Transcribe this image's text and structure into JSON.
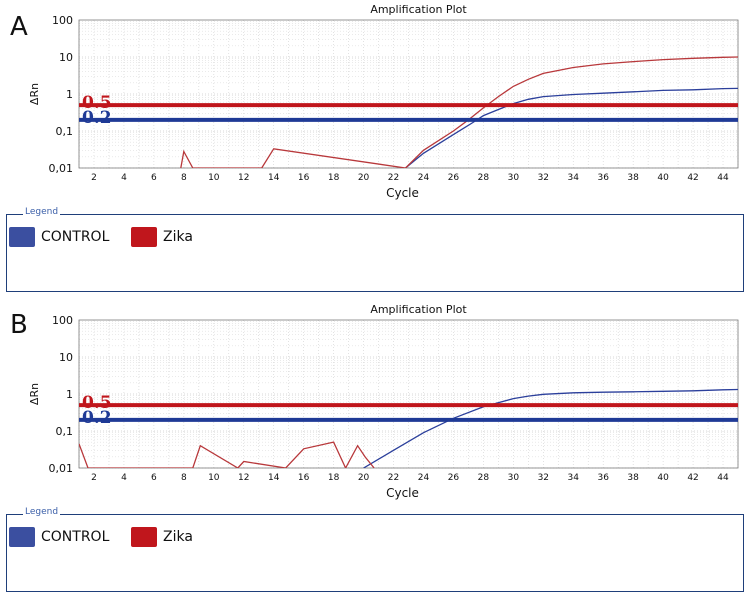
{
  "chart_data": [
    {
      "type": "line",
      "panel": "A",
      "title": "Amplification Plot",
      "xlabel": "Cycle",
      "ylabel": "ΔRn",
      "yscale": "log",
      "xlim": [
        1,
        45
      ],
      "ylim": [
        0.01,
        100
      ],
      "x_ticks": [
        "2",
        "4",
        "6",
        "8",
        "10",
        "12",
        "14",
        "16",
        "18",
        "20",
        "22",
        "24",
        "26",
        "28",
        "30",
        "32",
        "34",
        "36",
        "38",
        "40",
        "42",
        "44"
      ],
      "y_ticks": [
        "0,01",
        "0,1",
        "1",
        "10",
        "100"
      ],
      "grid": true,
      "thresholds": [
        {
          "label": "0.5",
          "value": 0.5,
          "color": "#c0161c"
        },
        {
          "label": "0.2",
          "value": 0.2,
          "color": "#1f3a96"
        }
      ],
      "series": [
        {
          "name": "CONTROL",
          "color": "#2b3f9b",
          "x": [
            22.8,
            24,
            26,
            27.3,
            28,
            29,
            30,
            31,
            32,
            34,
            36,
            38,
            40,
            42,
            44,
            45
          ],
          "y": [
            0.01,
            0.025,
            0.08,
            0.17,
            0.26,
            0.38,
            0.55,
            0.72,
            0.85,
            0.97,
            1.05,
            1.15,
            1.25,
            1.3,
            1.4,
            1.42
          ]
        },
        {
          "name": "Zika",
          "color": "#b8383b",
          "x": [
            7.8,
            8,
            8.6,
            13.2,
            14,
            22.8,
            24,
            26,
            27,
            28,
            29,
            30,
            31,
            32,
            34,
            36,
            38,
            40,
            42,
            44,
            45
          ],
          "y": [
            0.01,
            0.028,
            0.01,
            0.01,
            0.033,
            0.01,
            0.03,
            0.1,
            0.2,
            0.42,
            0.85,
            1.6,
            2.5,
            3.6,
            5.2,
            6.5,
            7.5,
            8.5,
            9.2,
            9.8,
            10
          ]
        }
      ],
      "legend": {
        "title": "Legend",
        "position": "bottom",
        "entries": [
          {
            "label": "CONTROL",
            "color": "#3b4fa0"
          },
          {
            "label": "Zika",
            "color": "#c0161c"
          }
        ]
      }
    },
    {
      "type": "line",
      "panel": "B",
      "title": "Amplification Plot",
      "xlabel": "Cycle",
      "ylabel": "ΔRn",
      "yscale": "log",
      "xlim": [
        1,
        45
      ],
      "ylim": [
        0.01,
        100
      ],
      "x_ticks": [
        "2",
        "4",
        "6",
        "8",
        "10",
        "12",
        "14",
        "16",
        "18",
        "20",
        "22",
        "24",
        "26",
        "28",
        "30",
        "32",
        "34",
        "36",
        "38",
        "40",
        "42",
        "44"
      ],
      "y_ticks": [
        "0,01",
        "0,1",
        "1",
        "10",
        "100"
      ],
      "grid": true,
      "thresholds": [
        {
          "label": "0.5",
          "value": 0.5,
          "color": "#c0161c"
        },
        {
          "label": "0.2",
          "value": 0.2,
          "color": "#1f3a96"
        }
      ],
      "series": [
        {
          "name": "CONTROL",
          "color": "#2b3f9b",
          "x": [
            20,
            22,
            24,
            26,
            28,
            30,
            31,
            32,
            34,
            36,
            38,
            40,
            42,
            44,
            45
          ],
          "y": [
            0.01,
            0.03,
            0.09,
            0.22,
            0.45,
            0.75,
            0.88,
            0.98,
            1.08,
            1.12,
            1.15,
            1.18,
            1.22,
            1.3,
            1.32
          ]
        },
        {
          "name": "Zika",
          "color": "#b8383b",
          "x": [
            1,
            1.6,
            8.6,
            9.1,
            11.6,
            12,
            14.8,
            16,
            18,
            18.8,
            19.6,
            20.1,
            20.7
          ],
          "y": [
            0.045,
            0.01,
            0.01,
            0.04,
            0.01,
            0.015,
            0.01,
            0.033,
            0.05,
            0.01,
            0.04,
            0.02,
            0.01
          ]
        }
      ],
      "legend": {
        "title": "Legend",
        "position": "bottom",
        "entries": [
          {
            "label": "CONTROL",
            "color": "#3b4fa0"
          },
          {
            "label": "Zika",
            "color": "#c0161c"
          }
        ]
      }
    }
  ],
  "panels": [
    {
      "letter": "A"
    },
    {
      "letter": "B"
    }
  ]
}
